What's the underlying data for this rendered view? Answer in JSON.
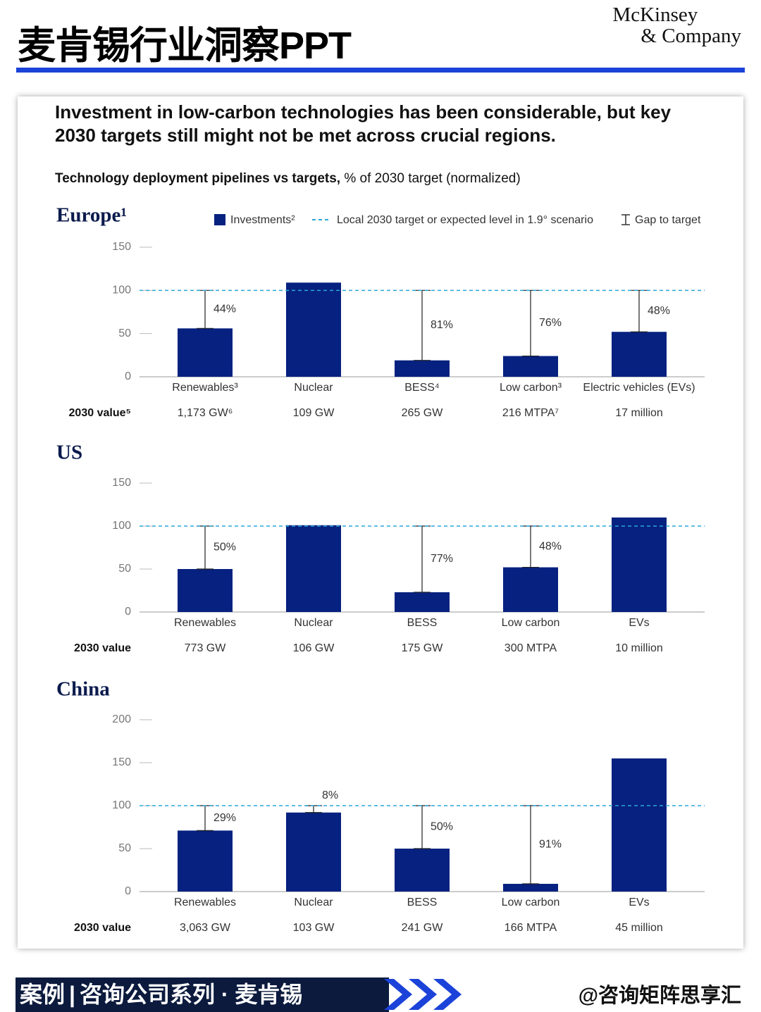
{
  "header": {
    "title": "麦肯锡行业洞察PPT",
    "logo": [
      "McKinsey",
      "& Company"
    ]
  },
  "card": {
    "heading": "Investment in low-carbon technologies has been considerable, but key 2030 targets still might not be met across crucial regions.",
    "subtitle_bold": "Technology deployment pipelines vs targets,",
    "subtitle_rest": "% of 2030 target (normalized)",
    "legend": {
      "investments": "Investments²",
      "target": "Local 2030 target or expected level in 1.9° scenario",
      "gap": "Gap to target"
    }
  },
  "chart_data": [
    {
      "type": "bar",
      "title": "Europe¹",
      "categories": [
        "Renewables³",
        "Nuclear",
        "BESS⁴",
        "Low carbon³",
        "Electric vehicles (EVs)"
      ],
      "values": [
        56,
        109,
        19,
        24,
        52
      ],
      "gap_labels": [
        "44%",
        null,
        "81%",
        "76%",
        "48%"
      ],
      "target": 100,
      "ylim": [
        0,
        150
      ],
      "yticks": [
        0,
        50,
        100,
        150
      ],
      "color": "#06217f",
      "target_color": "#2aa7d8",
      "row_label": "2030 value⁵",
      "row_values": [
        "1,173 GW⁶",
        "109 GW",
        "265 GW",
        "216 MTPA⁷",
        "17 million"
      ]
    },
    {
      "type": "bar",
      "title": "US",
      "categories": [
        "Renewables",
        "Nuclear",
        "BESS",
        "Low carbon",
        "EVs"
      ],
      "values": [
        50,
        101,
        23,
        52,
        110
      ],
      "gap_labels": [
        "50%",
        null,
        "77%",
        "48%",
        null
      ],
      "target": 100,
      "ylim": [
        0,
        150
      ],
      "yticks": [
        0,
        50,
        100,
        150
      ],
      "color": "#06217f",
      "target_color": "#2aa7d8",
      "row_label": "2030 value",
      "row_values": [
        "773 GW",
        "106 GW",
        "175 GW",
        "300 MTPA",
        "10 million"
      ]
    },
    {
      "type": "bar",
      "title": "China",
      "categories": [
        "Renewables",
        "Nuclear",
        "BESS",
        "Low carbon",
        "EVs"
      ],
      "values": [
        71,
        92,
        50,
        9,
        155
      ],
      "gap_labels": [
        "29%",
        "8%",
        "50%",
        "91%",
        null
      ],
      "target": 100,
      "ylim": [
        0,
        200
      ],
      "yticks": [
        0,
        50,
        100,
        150,
        200
      ],
      "color": "#06217f",
      "target_color": "#2aa7d8",
      "row_label": "2030 value",
      "row_values": [
        "3,063 GW",
        "103 GW",
        "241 GW",
        "166 MTPA",
        "45 million"
      ]
    }
  ],
  "footer": {
    "tag": "案例",
    "series": "咨询公司系列 · 麦肯锡",
    "handle": "@咨询矩阵思享汇"
  }
}
